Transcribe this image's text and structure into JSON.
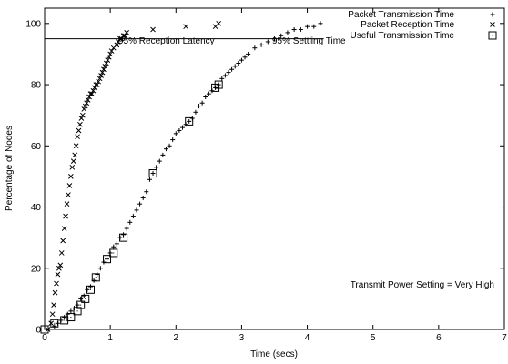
{
  "chart_data": {
    "type": "scatter",
    "xlabel": "Time (secs)",
    "ylabel": "Percentage of Nodes",
    "xlim": [
      0,
      7
    ],
    "ylim": [
      0,
      105
    ],
    "xticks": [
      "0",
      "1",
      "2",
      "3",
      "4",
      "5",
      "6",
      "7"
    ],
    "yticks": [
      "0",
      "20",
      "40",
      "60",
      "80",
      "100"
    ],
    "grid": false,
    "legend_position": "top-right",
    "series": [
      {
        "name": "Packet Transmission Time",
        "marker": "plus",
        "x": [
          0.15,
          0.2,
          0.25,
          0.3,
          0.35,
          0.4,
          0.45,
          0.5,
          0.55,
          0.6,
          0.65,
          0.7,
          0.75,
          0.8,
          0.85,
          0.9,
          0.95,
          1.0,
          1.05,
          1.1,
          1.15,
          1.2,
          1.25,
          1.3,
          1.35,
          1.4,
          1.45,
          1.5,
          1.55,
          1.6,
          1.65,
          1.7,
          1.75,
          1.8,
          1.85,
          1.9,
          1.95,
          2.0,
          2.05,
          2.1,
          2.15,
          2.2,
          2.25,
          2.3,
          2.35,
          2.4,
          2.45,
          2.5,
          2.55,
          2.6,
          2.65,
          2.7,
          2.75,
          2.8,
          2.85,
          2.9,
          2.95,
          3.0,
          3.05,
          3.1,
          3.2,
          3.3,
          3.4,
          3.5,
          3.6,
          3.7,
          3.8,
          3.9,
          4.0,
          4.1,
          4.2
        ],
        "y": [
          1,
          2,
          3,
          4,
          5,
          6,
          7,
          8,
          10,
          11,
          13,
          14,
          16,
          18,
          20,
          22,
          23,
          25,
          27,
          28,
          30,
          31,
          33,
          35,
          37,
          39,
          41,
          43,
          45,
          49,
          51,
          53,
          55,
          57,
          59,
          60,
          62,
          64,
          65,
          66,
          67,
          68,
          69,
          71,
          73,
          74,
          76,
          77,
          78,
          79,
          80,
          82,
          83,
          84,
          85,
          86,
          87,
          88,
          89,
          90,
          92,
          93,
          94,
          95,
          96,
          97,
          98,
          98,
          99,
          99,
          100
        ]
      },
      {
        "name": "Packet Reception Time",
        "marker": "cross",
        "x": [
          0.05,
          0.1,
          0.12,
          0.14,
          0.16,
          0.18,
          0.2,
          0.22,
          0.24,
          0.26,
          0.28,
          0.3,
          0.32,
          0.34,
          0.36,
          0.38,
          0.4,
          0.42,
          0.44,
          0.46,
          0.48,
          0.5,
          0.52,
          0.54,
          0.56,
          0.58,
          0.6,
          0.62,
          0.64,
          0.66,
          0.68,
          0.7,
          0.72,
          0.74,
          0.76,
          0.78,
          0.8,
          0.82,
          0.84,
          0.86,
          0.88,
          0.9,
          0.92,
          0.94,
          0.96,
          0.98,
          1.0,
          1.02,
          1.05,
          1.1,
          1.12,
          1.15,
          1.17,
          1.2,
          1.22,
          1.25,
          1.65,
          2.15,
          2.6,
          2.65
        ],
        "y": [
          0,
          2,
          5,
          8,
          12,
          15,
          18,
          20,
          21,
          25,
          29,
          33,
          37,
          41,
          44,
          47,
          50,
          53,
          55,
          57,
          60,
          63,
          65,
          67,
          69,
          70,
          72,
          73,
          74,
          75,
          76,
          77,
          77,
          78,
          79,
          80,
          80,
          81,
          82,
          83,
          84,
          85,
          86,
          87,
          88,
          89,
          90,
          91,
          92,
          93,
          94,
          95,
          95,
          96,
          96,
          97,
          98,
          99,
          99,
          100
        ]
      },
      {
        "name": "Useful Transmission Time",
        "marker": "square",
        "x": [
          0.0,
          0.15,
          0.3,
          0.4,
          0.5,
          0.55,
          0.62,
          0.7,
          0.78,
          0.95,
          1.05,
          1.2,
          1.65,
          2.2,
          2.6,
          2.65
        ],
        "y": [
          0,
          2,
          3,
          4,
          6,
          8,
          10,
          13,
          17,
          23,
          25,
          30,
          51,
          68,
          79,
          80
        ]
      }
    ],
    "reference_line": {
      "y": 95,
      "x_end": 4.25
    },
    "annotations": [
      {
        "text": "95% Reception Latency",
        "x": 1.12,
        "y": 95
      },
      {
        "text": "95% Settling Time",
        "x": 3.5,
        "y": 95
      },
      {
        "text": "Transmit Power Setting = Very High",
        "x": 6.95,
        "y": 14.5
      }
    ]
  }
}
